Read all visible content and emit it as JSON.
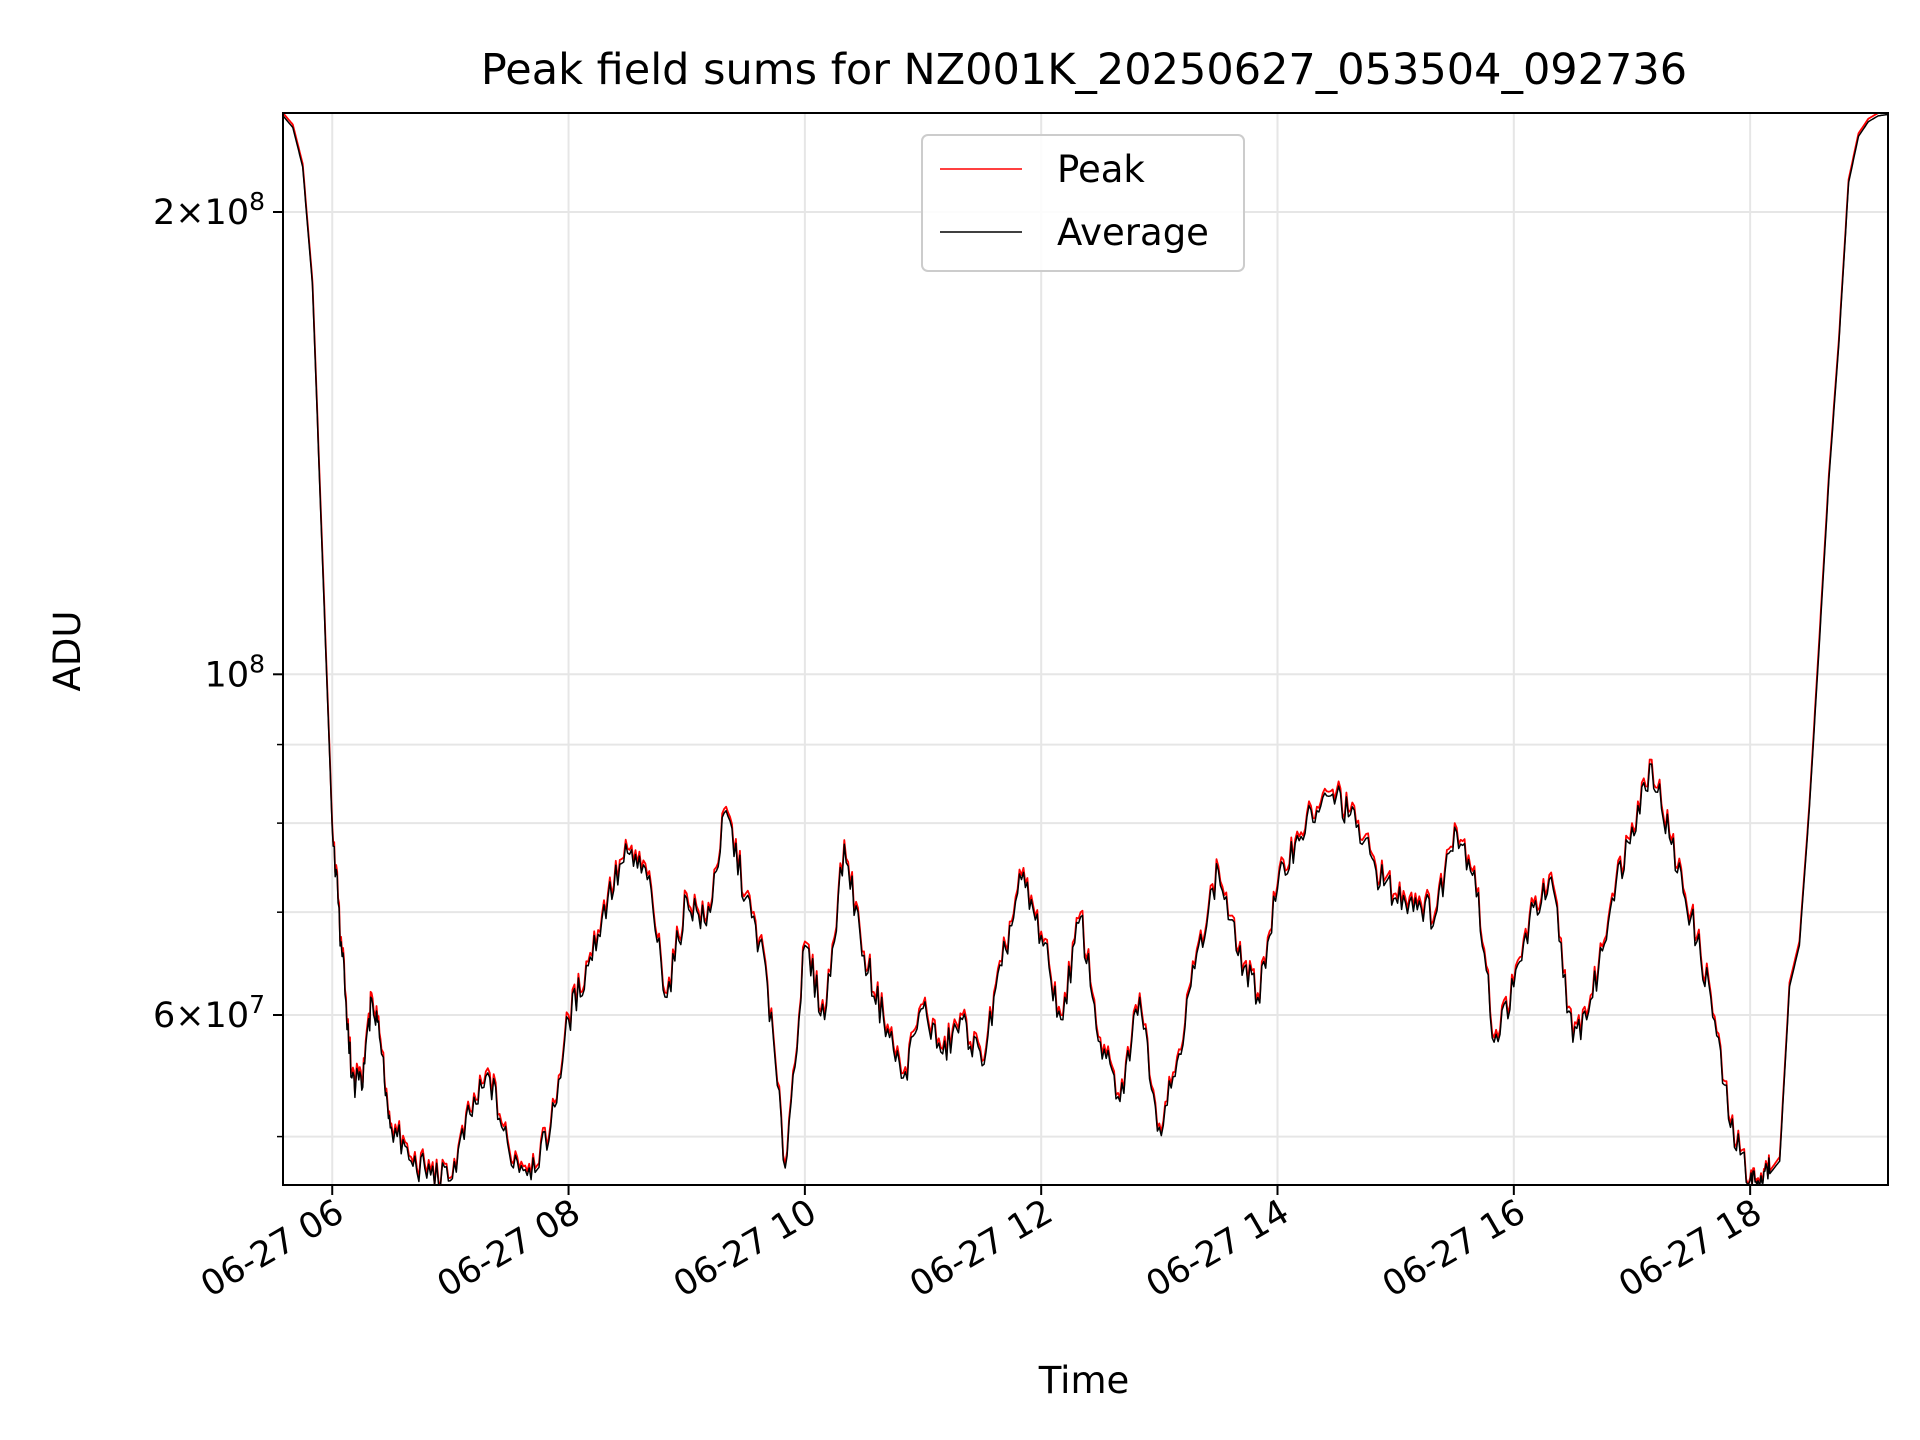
{
  "chart_data": {
    "type": "line",
    "title": "Peak field sums for NZ001K_20250627_053504_092736",
    "xlabel": "Time",
    "ylabel": "ADU",
    "x_axis": "time",
    "y_scale": "log",
    "xlim": [
      "2025-06-27 05:35",
      "2025-06-27 19:10"
    ],
    "ylim": [
      46500000,
      232000000
    ],
    "grid": true,
    "legend_placement": "upper center",
    "x_ticks": [
      {
        "value": "2025-06-27 06:00",
        "label": "06-27 06"
      },
      {
        "value": "2025-06-27 08:00",
        "label": "06-27 08"
      },
      {
        "value": "2025-06-27 10:00",
        "label": "06-27 10"
      },
      {
        "value": "2025-06-27 12:00",
        "label": "06-27 12"
      },
      {
        "value": "2025-06-27 14:00",
        "label": "06-27 14"
      },
      {
        "value": "2025-06-27 16:00",
        "label": "06-27 16"
      },
      {
        "value": "2025-06-27 18:00",
        "label": "06-27 18"
      }
    ],
    "y_ticks_major": [
      {
        "value": 60000000,
        "mantissa": "6",
        "exponent": "7"
      },
      {
        "value": 100000000,
        "mantissa": "",
        "exponent": "8"
      },
      {
        "value": 200000000,
        "mantissa": "2",
        "exponent": "8"
      }
    ],
    "y_ticks_minor": [
      50000000,
      70000000,
      80000000,
      90000000
    ],
    "series": [
      {
        "name": "Peak",
        "color": "#ff0000",
        "x": [
          "05:35",
          "05:40",
          "05:45",
          "05:50",
          "05:55",
          "06:00",
          "06:05",
          "06:10",
          "06:15",
          "06:20",
          "06:25",
          "06:30",
          "06:40",
          "06:50",
          "07:00",
          "07:10",
          "07:20",
          "07:30",
          "07:40",
          "07:50",
          "08:00",
          "08:10",
          "08:20",
          "08:30",
          "08:40",
          "08:50",
          "09:00",
          "09:10",
          "09:20",
          "09:30",
          "09:40",
          "09:50",
          "10:00",
          "10:10",
          "10:20",
          "10:30",
          "10:40",
          "10:50",
          "11:00",
          "11:10",
          "11:20",
          "11:30",
          "11:40",
          "11:50",
          "12:00",
          "12:10",
          "12:20",
          "12:30",
          "12:40",
          "12:50",
          "13:00",
          "13:10",
          "13:20",
          "13:30",
          "13:40",
          "13:50",
          "14:00",
          "14:10",
          "14:20",
          "14:30",
          "14:40",
          "14:50",
          "15:00",
          "15:10",
          "15:20",
          "15:30",
          "15:40",
          "15:50",
          "16:00",
          "16:10",
          "16:20",
          "16:30",
          "16:40",
          "16:50",
          "17:00",
          "17:10",
          "17:20",
          "17:30",
          "17:40",
          "17:50",
          "18:00",
          "18:05",
          "18:10",
          "18:15",
          "18:20",
          "18:25",
          "18:30",
          "18:35",
          "18:40",
          "18:45",
          "18:50",
          "18:55",
          "19:00",
          "19:05",
          "19:10"
        ],
        "y": [
          232000000,
          228000000,
          215000000,
          180000000,
          120000000,
          80000000,
          66000000,
          55000000,
          54000000,
          62000000,
          57000000,
          51000000,
          48500000,
          47500000,
          47000000,
          52000000,
          55000000,
          49000000,
          48000000,
          50000000,
          60000000,
          65000000,
          72000000,
          77000000,
          74000000,
          62000000,
          72000000,
          69000000,
          82000000,
          72000000,
          65000000,
          48000000,
          67000000,
          60000000,
          78000000,
          66000000,
          60000000,
          55000000,
          61000000,
          57000000,
          60000000,
          56000000,
          65000000,
          74000000,
          68000000,
          60000000,
          70000000,
          58000000,
          53000000,
          62000000,
          51000000,
          57000000,
          67000000,
          75000000,
          66000000,
          62000000,
          73000000,
          79000000,
          82000000,
          84000000,
          80000000,
          75000000,
          72000000,
          72000000,
          70000000,
          80000000,
          75000000,
          58000000,
          63000000,
          71000000,
          73000000,
          58000000,
          62000000,
          72000000,
          80000000,
          88000000,
          78000000,
          70000000,
          62000000,
          51000000,
          47000000,
          46800000,
          47500000,
          48500000,
          63000000,
          67000000,
          82000000,
          105000000,
          135000000,
          165000000,
          210000000,
          225000000,
          230000000,
          232000000,
          232000000
        ]
      },
      {
        "name": "Average",
        "color": "#000000",
        "x": [
          "05:35",
          "05:40",
          "05:45",
          "05:50",
          "05:55",
          "06:00",
          "06:05",
          "06:10",
          "06:15",
          "06:20",
          "06:25",
          "06:30",
          "06:40",
          "06:50",
          "07:00",
          "07:10",
          "07:20",
          "07:30",
          "07:40",
          "07:50",
          "08:00",
          "08:10",
          "08:20",
          "08:30",
          "08:40",
          "08:50",
          "09:00",
          "09:10",
          "09:20",
          "09:30",
          "09:40",
          "09:50",
          "10:00",
          "10:10",
          "10:20",
          "10:30",
          "10:40",
          "10:50",
          "11:00",
          "11:10",
          "11:20",
          "11:30",
          "11:40",
          "11:50",
          "12:00",
          "12:10",
          "12:20",
          "12:30",
          "12:40",
          "12:50",
          "13:00",
          "13:10",
          "13:20",
          "13:30",
          "13:40",
          "13:50",
          "14:00",
          "14:10",
          "14:20",
          "14:30",
          "14:40",
          "14:50",
          "15:00",
          "15:10",
          "15:20",
          "15:30",
          "15:40",
          "15:50",
          "16:00",
          "16:10",
          "16:20",
          "16:30",
          "16:40",
          "16:50",
          "17:00",
          "17:10",
          "17:20",
          "17:30",
          "17:40",
          "17:50",
          "18:00",
          "18:05",
          "18:10",
          "18:15",
          "18:20",
          "18:25",
          "18:30",
          "18:35",
          "18:40",
          "18:45",
          "18:50",
          "18:55",
          "19:00",
          "19:05",
          "19:10"
        ],
        "y": [
          231000000,
          227000000,
          214000000,
          179000000,
          119000000,
          79500000,
          65500000,
          54600000,
          53600000,
          61500000,
          56600000,
          50700000,
          48200000,
          47200000,
          46800000,
          51700000,
          54600000,
          48700000,
          47700000,
          49700000,
          59600000,
          64600000,
          71500000,
          76500000,
          73500000,
          61600000,
          71500000,
          68600000,
          81500000,
          71500000,
          64600000,
          47700000,
          66600000,
          59600000,
          77500000,
          65600000,
          59600000,
          54600000,
          60600000,
          56600000,
          59600000,
          55600000,
          64600000,
          73500000,
          67600000,
          59600000,
          69500000,
          57600000,
          52700000,
          61600000,
          50700000,
          56600000,
          66600000,
          74500000,
          65600000,
          61600000,
          72500000,
          78500000,
          81500000,
          83400000,
          79500000,
          74500000,
          71500000,
          71500000,
          69500000,
          79500000,
          74500000,
          57600000,
          62600000,
          70500000,
          72500000,
          57600000,
          61600000,
          71500000,
          79500000,
          87400000,
          77500000,
          69500000,
          61600000,
          50700000,
          46800000,
          46600000,
          47300000,
          48200000,
          62600000,
          66600000,
          81500000,
          104000000,
          134000000,
          164000000,
          209000000,
          224000000,
          229000000,
          231000000,
          231500000
        ]
      }
    ]
  }
}
